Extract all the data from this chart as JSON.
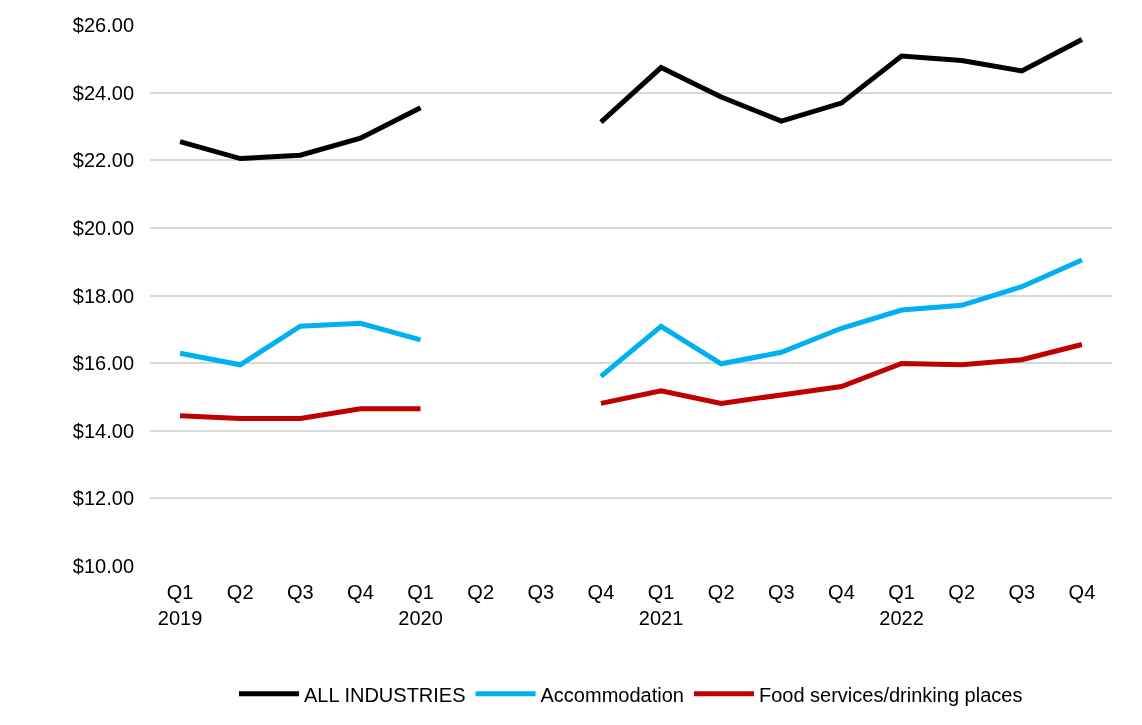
{
  "chart_data": {
    "type": "line",
    "categories": [
      "Q1\n2019",
      "Q2",
      "Q3",
      "Q4",
      "Q1\n2020",
      "Q2",
      "Q3",
      "Q4",
      "Q1\n2021",
      "Q2",
      "Q3",
      "Q4",
      "Q1\n2022",
      "Q2",
      "Q3",
      "Q4"
    ],
    "series": [
      {
        "name": "ALL INDUSTRIES",
        "color": "#000000",
        "values": [
          22.55,
          22.05,
          22.15,
          22.65,
          23.55,
          null,
          null,
          23.13,
          24.74,
          23.87,
          23.16,
          23.69,
          25.08,
          24.95,
          24.64,
          25.57
        ]
      },
      {
        "name": "Accommodation",
        "color": "#00b0f0",
        "values": [
          16.29,
          15.95,
          17.09,
          17.18,
          16.69,
          null,
          null,
          15.61,
          17.09,
          15.98,
          16.32,
          17.03,
          17.57,
          17.71,
          18.26,
          19.05
        ]
      },
      {
        "name": "Food services/drinking places",
        "color": "#c00000",
        "values": [
          14.44,
          14.36,
          14.36,
          14.65,
          14.65,
          null,
          null,
          14.81,
          15.18,
          14.81,
          15.06,
          15.31,
          15.99,
          15.95,
          16.1,
          16.55
        ]
      }
    ],
    "ylim": [
      10,
      26
    ],
    "yticks": [
      {
        "value": 10,
        "label": "$10.00"
      },
      {
        "value": 12,
        "label": "$12.00"
      },
      {
        "value": 14,
        "label": "$14.00"
      },
      {
        "value": 16,
        "label": "$16.00"
      },
      {
        "value": 18,
        "label": "$18.00"
      },
      {
        "value": 20,
        "label": "$20.00"
      },
      {
        "value": 22,
        "label": "$22.00"
      },
      {
        "value": 24,
        "label": "$24.00"
      },
      {
        "value": 26,
        "label": "$26.00"
      }
    ],
    "grid": "y",
    "legend": "bottom",
    "marker": "none",
    "line_style": "solid"
  }
}
